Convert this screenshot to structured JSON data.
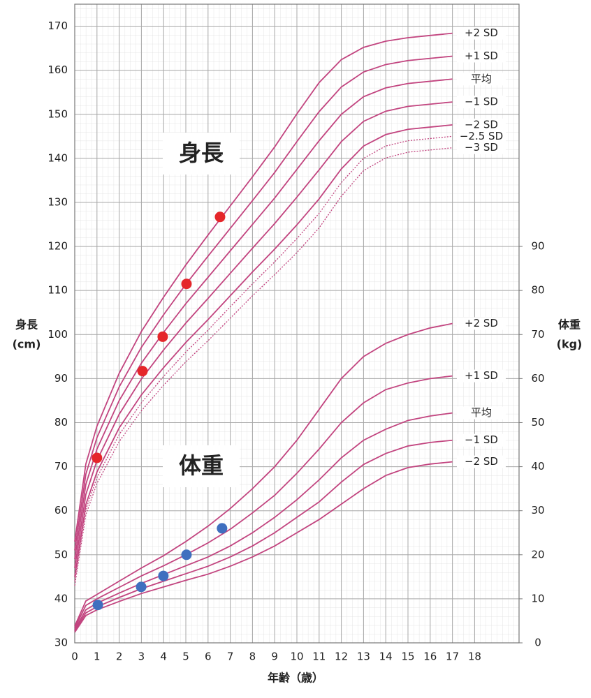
{
  "chart_data": {
    "type": "line",
    "xlabel": "年齢（歳）",
    "ylabel": [
      "身長",
      "(cm)"
    ],
    "y2label": [
      "体重",
      "(kg)"
    ],
    "annotations": [
      "身長",
      "体重"
    ],
    "xlim": [
      0,
      20
    ],
    "xticks": [
      0,
      1,
      2,
      3,
      4,
      5,
      6,
      7,
      8,
      9,
      10,
      11,
      12,
      13,
      14,
      15,
      16,
      17,
      18
    ],
    "ylim": [
      30,
      175
    ],
    "yticks": [
      30,
      40,
      50,
      60,
      70,
      80,
      90,
      100,
      110,
      120,
      130,
      140,
      150,
      160,
      170
    ],
    "y2lim": [
      0,
      145
    ],
    "y2ticks": [
      0,
      10,
      20,
      30,
      40,
      50,
      60,
      70,
      80,
      90
    ],
    "grid": true,
    "x": [
      0,
      0.5,
      1,
      2,
      3,
      4,
      5,
      6,
      7,
      8,
      9,
      10,
      11,
      12,
      13,
      14,
      15,
      16,
      17
    ],
    "series": [
      {
        "name": "+2 SD",
        "color": "#c2447f",
        "values": [
          53,
          70.6,
          79.2,
          91.2,
          100.7,
          108.5,
          115.8,
          122.6,
          129.2,
          135.8,
          142.6,
          150.1,
          157.2,
          162.4,
          165.2,
          166.6,
          167.4,
          167.9,
          168.4
        ]
      },
      {
        "name": "+1 SD",
        "color": "#c2447f",
        "values": [
          51,
          68.3,
          76.6,
          88.1,
          97.1,
          104.5,
          111.4,
          117.8,
          124.1,
          130.4,
          136.8,
          143.8,
          150.6,
          156.2,
          159.6,
          161.3,
          162.2,
          162.7,
          163.2
        ]
      },
      {
        "name": "平均",
        "color": "#c2447f",
        "values": [
          49,
          66,
          74,
          85,
          93.5,
          100.5,
          107,
          113,
          119,
          125,
          131,
          137.5,
          144,
          150,
          154,
          156,
          157,
          157.5,
          158
        ]
      },
      {
        "name": "−1 SD",
        "color": "#c2447f",
        "values": [
          47,
          63.7,
          71.4,
          81.9,
          89.9,
          96.5,
          102.6,
          108.2,
          113.9,
          119.6,
          125.2,
          131.2,
          137.4,
          143.8,
          148.4,
          150.7,
          151.8,
          152.3,
          152.8
        ]
      },
      {
        "name": "−2 SD",
        "color": "#c2447f",
        "values": [
          45,
          61.4,
          68.8,
          78.8,
          86.3,
          92.5,
          98.2,
          103.4,
          108.8,
          114.2,
          119.4,
          124.9,
          130.8,
          137.6,
          142.8,
          145.4,
          146.6,
          147.1,
          147.6
        ]
      },
      {
        "name": "−2.5 SD",
        "color": "#c2447f",
        "dashed": true,
        "values": [
          44,
          60.3,
          67.5,
          77.3,
          84.5,
          90.5,
          96,
          101,
          106.3,
          111.5,
          116.5,
          121.8,
          127.5,
          134.5,
          140,
          142.8,
          144,
          144.5,
          145
        ]
      },
      {
        "name": "−3 SD",
        "color": "#c2447f",
        "dashed": true,
        "values": [
          43,
          59.1,
          66.2,
          75.7,
          82.7,
          88.5,
          93.8,
          98.6,
          103.7,
          108.8,
          113.6,
          118.6,
          124.2,
          131.4,
          137.2,
          140.1,
          141.4,
          141.9,
          142.4
        ]
      },
      {
        "name": "+2 SD",
        "color": "#c2447f",
        "axis": "y2",
        "values": [
          3.8,
          9.5,
          11,
          14,
          17,
          19.8,
          23,
          26.5,
          30.5,
          35,
          40,
          46,
          53,
          60,
          65,
          68,
          70,
          71.5,
          72.5
        ]
      },
      {
        "name": "+1 SD",
        "color": "#c2447f",
        "axis": "y2",
        "values": [
          3.4,
          8.5,
          10,
          12.6,
          15.2,
          17.5,
          20,
          22.7,
          25.8,
          29.5,
          33.5,
          38.5,
          44,
          50,
          54.5,
          57.5,
          59,
          60,
          60.6
        ]
      },
      {
        "name": "平均",
        "color": "#c2447f",
        "axis": "y2",
        "values": [
          3,
          7.5,
          9,
          11.3,
          13.5,
          15.5,
          17.5,
          19.5,
          22,
          25,
          28.5,
          32.5,
          37,
          42,
          46,
          48.5,
          50.5,
          51.5,
          52.2
        ]
      },
      {
        "name": "−1 SD",
        "color": "#c2447f",
        "axis": "y2",
        "values": [
          2.7,
          6.8,
          8.2,
          10.3,
          12.3,
          14,
          15.7,
          17.4,
          19.5,
          22,
          25,
          28.5,
          32,
          36.5,
          40.5,
          43,
          44.7,
          45.5,
          46
        ]
      },
      {
        "name": "−2 SD",
        "color": "#c2447f",
        "axis": "y2",
        "values": [
          2.4,
          6.2,
          7.5,
          9.4,
          11.2,
          12.7,
          14.2,
          15.6,
          17.4,
          19.5,
          22,
          25,
          28,
          31.5,
          35,
          38,
          39.8,
          40.6,
          41.1
        ]
      }
    ],
    "points": [
      {
        "color": "#e5262a",
        "x": [
          1,
          3.05,
          3.96,
          5.03,
          6.54
        ],
        "values": [
          72,
          91.7,
          99.5,
          111.5,
          126.7
        ]
      },
      {
        "color": "#3f6fbf",
        "axis": "y2",
        "x": [
          1.04,
          2.99,
          3.99,
          5.03,
          6.63
        ],
        "values": [
          8.6,
          12.7,
          15.2,
          20,
          26
        ]
      }
    ]
  }
}
